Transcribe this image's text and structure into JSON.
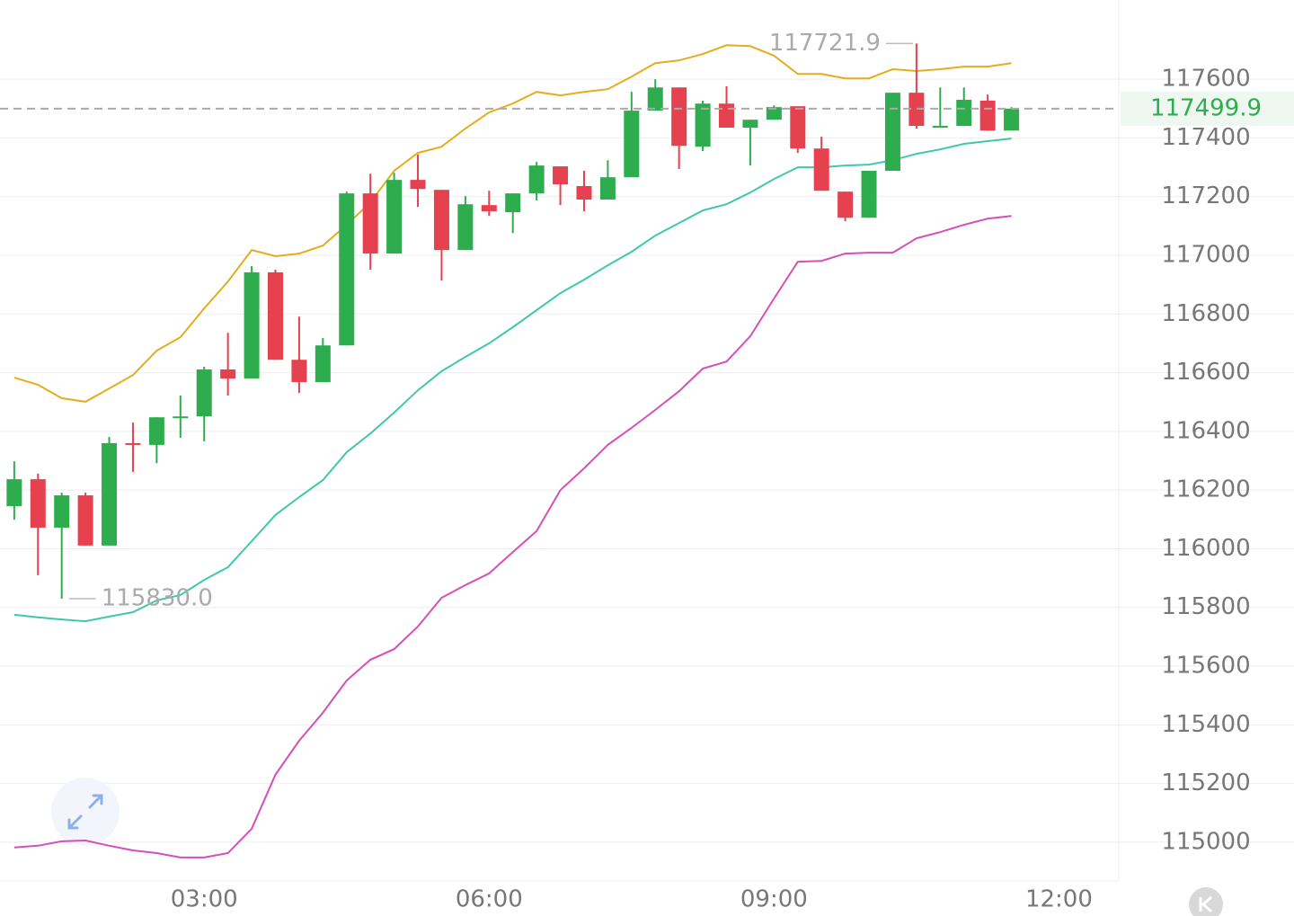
{
  "chart_data": {
    "type": "candlestick",
    "x": [
      1,
      1.25,
      1.5,
      1.75,
      2,
      2.25,
      2.5,
      2.75,
      3,
      3.25,
      3.5,
      3.75,
      4,
      4.25,
      4.5,
      4.75,
      5,
      5.25,
      5.5,
      5.75,
      6,
      6.25,
      6.5,
      6.75,
      7,
      7.25,
      7.5,
      7.75,
      8,
      8.25,
      8.5,
      8.75,
      9,
      9.25,
      9.5,
      9.75,
      10,
      10.25,
      10.5,
      10.75,
      11,
      11.25,
      11.5
    ],
    "open": [
      116145,
      116237,
      116072,
      116182,
      116011,
      116360,
      116354,
      116451,
      116451,
      116611,
      116580,
      116942,
      116644,
      116568,
      116693,
      117211,
      117006,
      117257,
      117223,
      117018,
      117171,
      117147,
      117211,
      117303,
      117236,
      117190,
      117266,
      117493,
      117572,
      117370,
      117517,
      117435,
      117462,
      117508,
      117364,
      117217,
      117128,
      117288,
      117554,
      117438,
      117441,
      117527,
      117425
    ],
    "high": [
      116298,
      116256,
      116191,
      116191,
      116381,
      116430,
      116448,
      116522,
      116620,
      116736,
      116963,
      116951,
      116791,
      116718,
      117217,
      117278,
      117281,
      117343,
      117223,
      117202,
      117220,
      117211,
      117318,
      117303,
      117288,
      117324,
      117557,
      117600,
      117572,
      117527,
      117576,
      117462,
      117511,
      117508,
      117404,
      117217,
      117288,
      117554,
      117721.9,
      117572,
      117572,
      117548,
      117505
    ],
    "low": [
      116099,
      115910,
      115830,
      116011,
      116011,
      116262,
      116292,
      116378,
      116366,
      116522,
      116580,
      116644,
      116531,
      116568,
      116693,
      116951,
      117006,
      117165,
      116914,
      117018,
      117134,
      117076,
      117187,
      117171,
      117150,
      117190,
      117266,
      117493,
      117294,
      117355,
      117435,
      117306,
      117462,
      117349,
      117220,
      117116,
      117128,
      117288,
      117432,
      117438,
      117441,
      117425,
      117425
    ],
    "close": [
      116237,
      116072,
      116182,
      116011,
      116360,
      116355,
      116448,
      116451,
      116611,
      116580,
      116942,
      116644,
      116568,
      116693,
      117211,
      117006,
      117257,
      117226,
      117018,
      117174,
      117150,
      117211,
      117306,
      117242,
      117190,
      117266,
      117493,
      117572,
      117373,
      117517,
      117435,
      117462,
      117505,
      117364,
      117220,
      117128,
      117288,
      117554,
      117441,
      117441,
      117530,
      117425,
      117499.9
    ],
    "up_color": "#2ead4f",
    "down_color": "#e5414f",
    "bands": [
      {
        "color": "#e3ad1c",
        "values": [
          116583,
          116559,
          116513,
          116501,
          116546,
          116592,
          116675,
          116721,
          116819,
          116911,
          117018,
          116997,
          117006,
          117033,
          117104,
          117180,
          117288,
          117349,
          117370,
          117432,
          117487,
          117517,
          117557,
          117545,
          117557,
          117566,
          117609,
          117655,
          117664,
          117686,
          117716,
          117713,
          117680,
          117618,
          117618,
          117603,
          117603,
          117634,
          117628,
          117634,
          117643,
          117643,
          117655
        ]
      },
      {
        "color": "#3ec9a8",
        "values": [
          115775,
          115766,
          115759,
          115753,
          115769,
          115784,
          115824,
          115842,
          115894,
          115937,
          116026,
          116115,
          116176,
          116234,
          116329,
          116393,
          116464,
          116540,
          116605,
          116654,
          116700,
          116755,
          116813,
          116871,
          116917,
          116966,
          117012,
          117067,
          117110,
          117153,
          117174,
          117214,
          117260,
          117300,
          117300,
          117306,
          117309,
          117324,
          117346,
          117361,
          117380,
          117389,
          117398
        ]
      },
      {
        "color": "#d64fb8",
        "values": [
          114982,
          114988,
          115003,
          115006,
          114988,
          114972,
          114963,
          114948,
          114948,
          114963,
          115046,
          115230,
          115346,
          115441,
          115551,
          115622,
          115658,
          115735,
          115833,
          115876,
          115916,
          115989,
          116060,
          116200,
          116274,
          116354,
          116412,
          116473,
          116537,
          116614,
          116638,
          116724,
          116853,
          116978,
          116981,
          117006,
          117009,
          117009,
          117058,
          117079,
          117104,
          117125,
          117134
        ]
      }
    ],
    "annotations": [
      {
        "x": 10.5,
        "value": 117721.9,
        "label": "117721.9",
        "side": "left"
      },
      {
        "x": 1.5,
        "value": 115830,
        "label": "115830.0",
        "side": "right"
      }
    ],
    "last_price": 117499.9,
    "last_price_color": "#2ead4f",
    "ylim": [
      114868,
      117870
    ],
    "yticks": [
      115000,
      115200,
      115400,
      115600,
      115800,
      116000,
      116200,
      116400,
      116600,
      116800,
      117000,
      117200,
      117400,
      117600
    ],
    "xlim": [
      0.85,
      12.63
    ],
    "xticks": [
      {
        "value": 3,
        "label": "03:00"
      },
      {
        "value": 6,
        "label": "06:00"
      },
      {
        "value": 9,
        "label": "09:00"
      },
      {
        "value": 12,
        "label": "12:00"
      }
    ],
    "grid": true
  }
}
